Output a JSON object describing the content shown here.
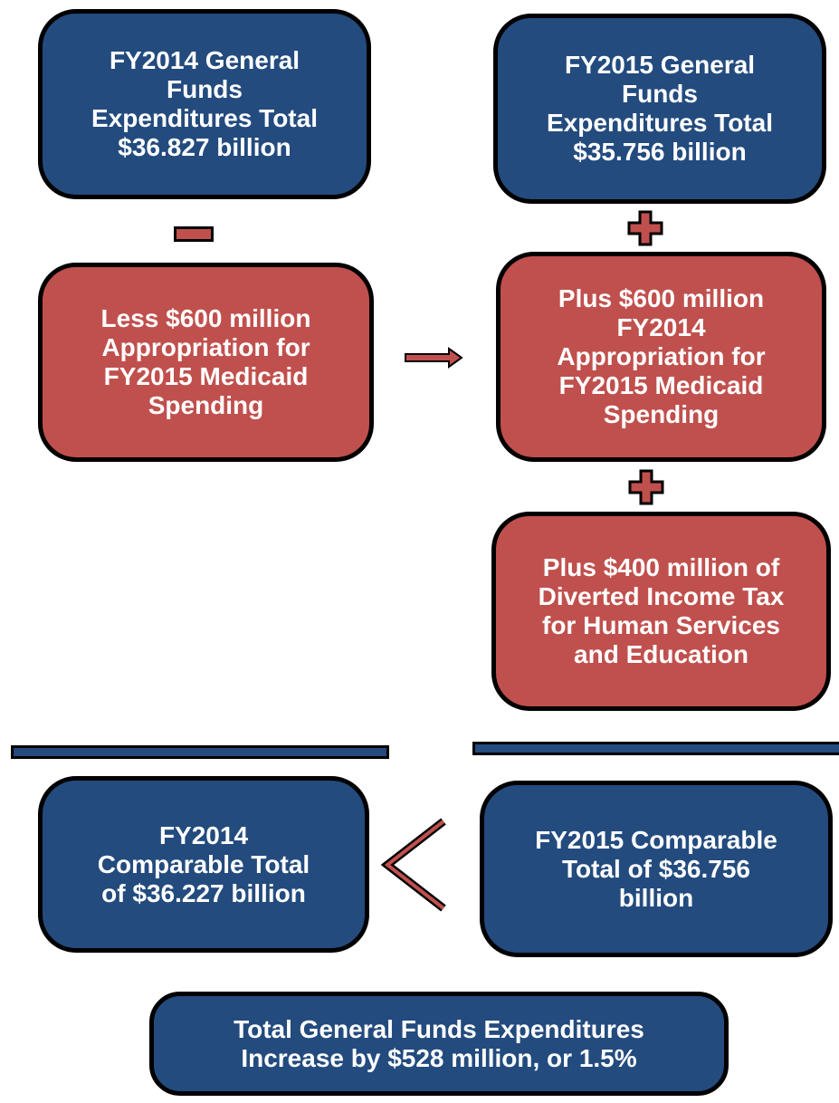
{
  "nodes": [
    {
      "lines": [
        "FY2014 General",
        "Funds",
        "Expenditures Total",
        "$36.827 billion"
      ]
    },
    {
      "lines": [
        "FY2015 General",
        "Funds",
        "Expenditures Total",
        "$35.756 billion"
      ]
    },
    {
      "lines": [
        "Less $600 million",
        "Appropriation for",
        "FY2015 Medicaid",
        "Spending"
      ]
    },
    {
      "lines": [
        "Plus $600 million",
        "FY2014",
        "Appropriation for",
        "FY2015 Medicaid",
        "Spending"
      ]
    },
    {
      "lines": [
        "Plus $400 million of",
        "Diverted Income Tax",
        "for Human Services",
        "and Education"
      ]
    },
    {
      "lines": [
        "FY2014",
        "Comparable Total",
        "of $36.227 billion"
      ]
    },
    {
      "lines": [
        "FY2015 Comparable",
        "Total of $36.756",
        "billion"
      ]
    },
    {
      "lines": [
        "Total General Funds Expenditures",
        "Increase by $528 million, or 1.5%"
      ]
    }
  ]
}
